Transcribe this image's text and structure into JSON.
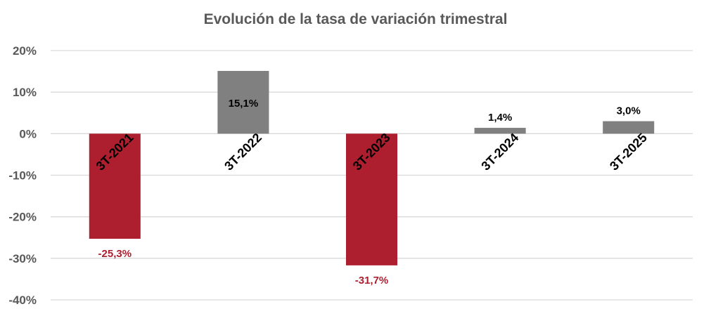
{
  "chart_data": {
    "type": "bar",
    "title": "Evolución de la tasa de variación trimestral",
    "xlabel": "",
    "ylabel": "",
    "categories": [
      "3T-2021",
      "3T-2022",
      "3T-2023",
      "3T-2024",
      "3T-2025"
    ],
    "values": [
      -25.3,
      15.1,
      -31.7,
      1.4,
      3.0
    ],
    "data_labels": [
      "-25,3%",
      "15,1%",
      "-31,7%",
      "1,4%",
      "3,0%"
    ],
    "ylim": [
      -40,
      20
    ],
    "yticks": [
      20,
      10,
      0,
      -10,
      -20,
      -30,
      -40
    ],
    "ytick_labels": [
      "20%",
      "10%",
      "0%",
      "-10%",
      "-20%",
      "-30%",
      "-40%"
    ],
    "grid": true,
    "legend": "none",
    "colors": {
      "positive": "#808080",
      "negative": "#ad1f2f",
      "positive_label": "#000000",
      "negative_label": "#ad1f2f",
      "grid": "#d9d9d9"
    }
  }
}
